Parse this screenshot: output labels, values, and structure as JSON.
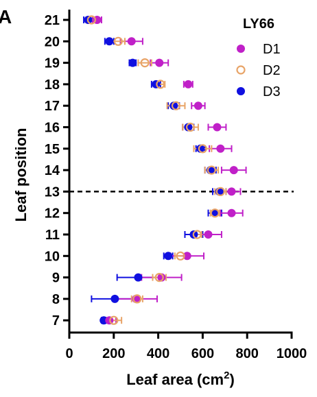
{
  "panel_label": "A",
  "chart_data": {
    "type": "scatter",
    "orientation": "horizontal",
    "title": "LY66",
    "xlabel_main": "Leaf area (cm",
    "xlabel_sup": "2",
    "xlabel_end": ")",
    "ylabel": "Leaf position",
    "xlim": [
      0,
      1000
    ],
    "xticks": [
      0,
      200,
      400,
      600,
      800,
      1000
    ],
    "categories": [
      21,
      20,
      19,
      18,
      17,
      16,
      15,
      14,
      13,
      12,
      11,
      10,
      9,
      8,
      7
    ],
    "reference_line": {
      "category": 13,
      "style": "dashed"
    },
    "legend_position": "top-right",
    "series": [
      {
        "name": "D1",
        "color": "#c020c8",
        "marker": "filled-circle",
        "values": [
          125,
          280,
          405,
          535,
          580,
          665,
          680,
          740,
          730,
          730,
          625,
          530,
          415,
          300,
          180
        ],
        "errors": [
          20,
          50,
          40,
          20,
          30,
          40,
          50,
          55,
          40,
          50,
          60,
          75,
          90,
          95,
          30
        ]
      },
      {
        "name": "D2",
        "color": "#e8a468",
        "marker": "open-circle",
        "values": [
          100,
          220,
          340,
          410,
          480,
          545,
          600,
          640,
          680,
          655,
          575,
          500,
          405,
          305,
          200
        ],
        "errors": [
          25,
          30,
          30,
          20,
          40,
          35,
          40,
          30,
          25,
          20,
          20,
          25,
          30,
          25,
          35
        ]
      },
      {
        "name": "D3",
        "color": "#1010e0",
        "marker": "filled-circle",
        "values": [
          85,
          180,
          285,
          390,
          470,
          535,
          590,
          635,
          675,
          655,
          560,
          445,
          310,
          205,
          155
        ],
        "errors": [
          20,
          20,
          15,
          20,
          25,
          25,
          20,
          25,
          30,
          30,
          40,
          20,
          95,
          105,
          10
        ]
      }
    ]
  }
}
